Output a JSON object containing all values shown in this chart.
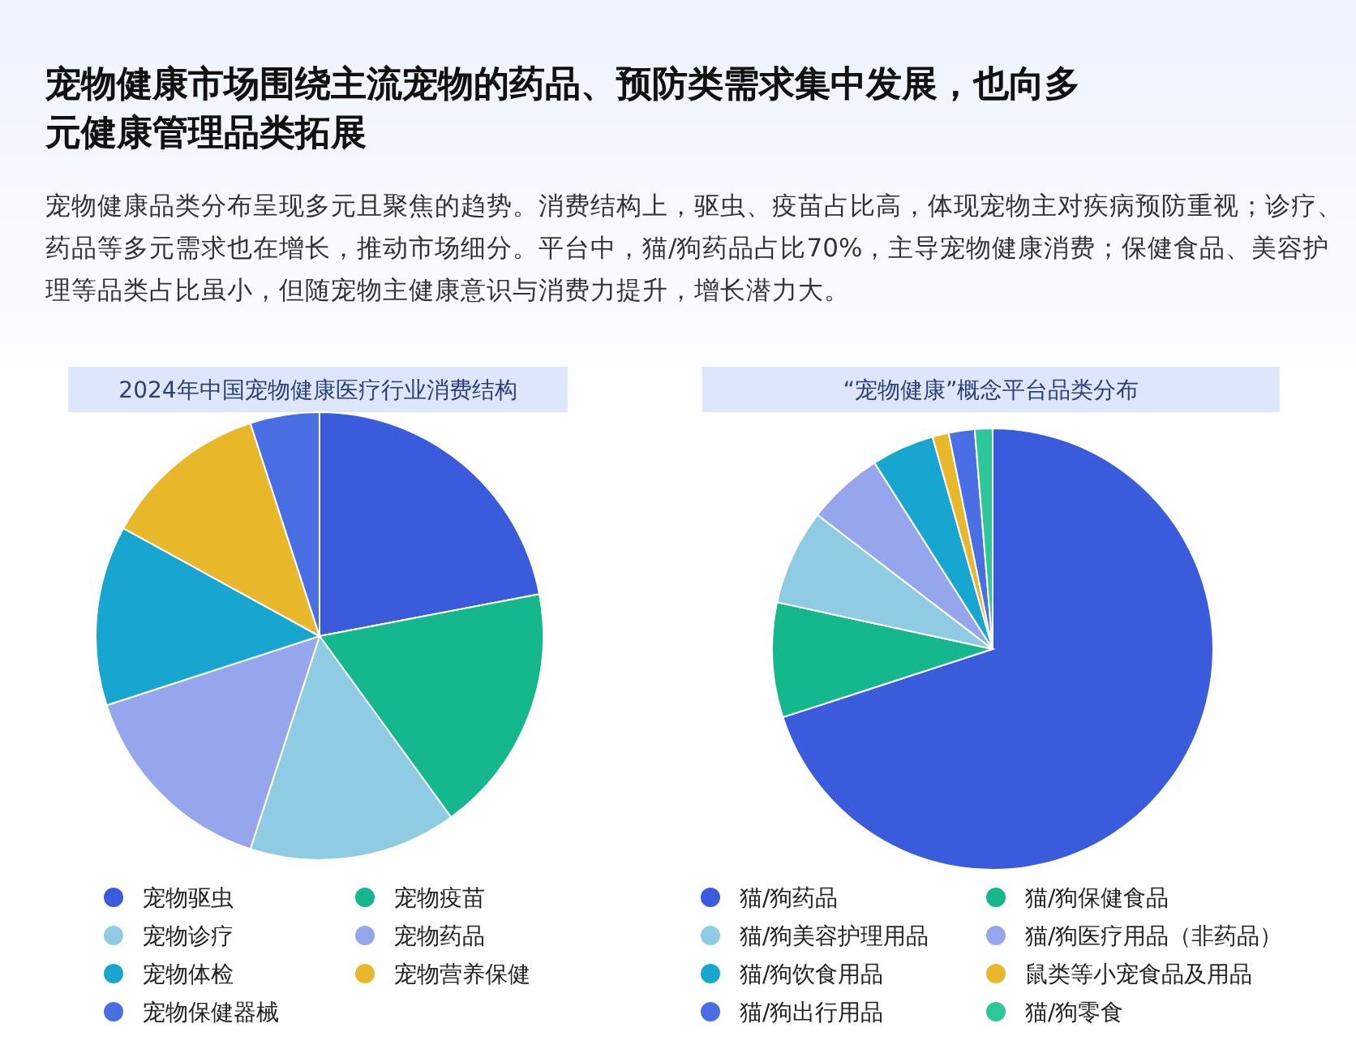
{
  "chart_data": [
    {
      "type": "other",
      "title": "宠物健康市场围绕主流宠物的药品、预防类需求集中发展，也向多元健康管理品类拓展",
      "subtitle": "宠物健康品类分布呈现多元且聚焦的趋势。消费结构上，驱虫、疫苗占比高，体现宠物主对疾病预防重视；诊疗、药品等多元需求也在增长，推动市场细分。平台中，猫/狗药品占比70%，主导宠物健康消费；保健食品、美容护理等品类占比虽小，但随宠物主健康意识与消费力提升，增长潜力大。"
    },
    {
      "type": "pie",
      "title": "2024年中国宠物健康医疗行业消费结构",
      "legend": "bottom",
      "categories": [
        "宠物驱虫",
        "宠物疫苗",
        "宠物诊疗",
        "宠物药品",
        "宠物体检",
        "宠物营养保健",
        "宠物保健器械"
      ],
      "values": [
        22,
        18,
        15,
        15,
        13,
        12,
        5
      ],
      "colors": [
        "#3a5bdc",
        "#14b88c",
        "#8fcbe3",
        "#96a6ec",
        "#16a6d0",
        "#e8b82a",
        "#4a6ee3"
      ]
    },
    {
      "type": "pie",
      "title": "“宠物健康”概念平台品类分布",
      "legend": "bottom",
      "categories": [
        "猫/狗药品",
        "猫/狗保健食品",
        "猫/狗美容护理用品",
        "猫/狗医疗用品（非药品）",
        "猫/狗饮食用品",
        "鼠类等小宠食品及用品",
        "猫/狗出行用品",
        "猫/狗零食"
      ],
      "values": [
        70,
        8.4,
        7,
        5.6,
        4.6,
        1.2,
        1.9,
        1.3
      ],
      "colors": [
        "#3a5bdc",
        "#14b88c",
        "#8fcbe3",
        "#96a6ec",
        "#16a6d0",
        "#e8b82a",
        "#4a6ee3",
        "#2ec79c"
      ]
    }
  ]
}
